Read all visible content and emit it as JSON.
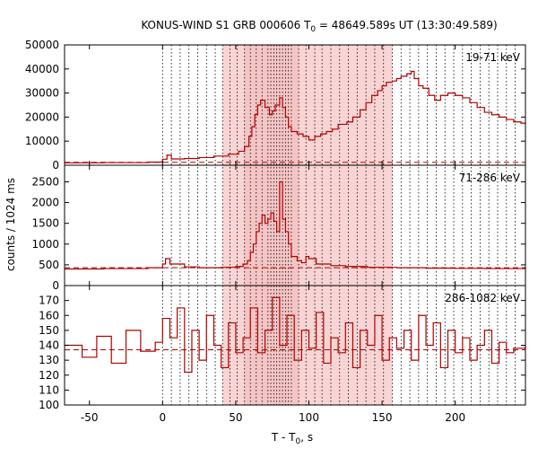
{
  "chart_data": {
    "type": "line",
    "title_text": "KONUS-WIND S1 GRB 000606 T",
    "title_sub": "0",
    "title_rest": " = 48649.589s UT (13:30:49.589)",
    "ylabel": "counts / 1024 ms",
    "xlabel_main": "T - T",
    "xlabel_sub": "0",
    "xlabel_tail": ", s",
    "xlim": [
      -67,
      248
    ],
    "x_ticks": [
      -50,
      0,
      50,
      100,
      150,
      200
    ],
    "colors": {
      "series": "#b00000",
      "shade": "#f9d4d4",
      "background_line": "#b00000"
    },
    "shaded_interval": [
      41,
      157
    ],
    "dark_shaded_interval": [
      56,
      93
    ],
    "interval_boundaries": [
      0,
      6,
      12,
      18,
      24,
      30,
      36,
      41,
      46,
      51,
      56,
      60,
      64,
      68,
      72,
      74,
      76,
      78,
      80,
      82,
      84,
      86,
      88,
      93,
      98,
      104,
      109,
      115,
      121,
      127,
      133,
      139,
      145,
      151,
      157,
      163,
      169,
      175,
      181,
      187,
      193,
      199,
      205,
      211,
      217,
      223,
      229,
      235,
      241
    ],
    "panels": [
      {
        "label": "19-71 keV",
        "ylim": [
          0,
          50000
        ],
        "y_ticks": [
          0,
          10000,
          20000,
          30000,
          40000,
          50000
        ],
        "background": 1200,
        "points": [
          [
            -67,
            1000
          ],
          [
            -40,
            1100
          ],
          [
            -10,
            1300
          ],
          [
            0,
            2500
          ],
          [
            3,
            4200
          ],
          [
            6,
            2600
          ],
          [
            15,
            2800
          ],
          [
            25,
            3200
          ],
          [
            35,
            3800
          ],
          [
            45,
            4600
          ],
          [
            52,
            5800
          ],
          [
            56,
            7800
          ],
          [
            59,
            12000
          ],
          [
            61,
            16000
          ],
          [
            63,
            21000
          ],
          [
            65,
            25000
          ],
          [
            67,
            27000
          ],
          [
            70,
            24000
          ],
          [
            73,
            21000
          ],
          [
            75,
            22500
          ],
          [
            77,
            25000
          ],
          [
            80,
            28000
          ],
          [
            82,
            24000
          ],
          [
            84,
            20000
          ],
          [
            86,
            16000
          ],
          [
            88,
            14000
          ],
          [
            92,
            13000
          ],
          [
            96,
            12000
          ],
          [
            100,
            10500
          ],
          [
            104,
            12000
          ],
          [
            108,
            13000
          ],
          [
            112,
            14000
          ],
          [
            116,
            15000
          ],
          [
            120,
            17000
          ],
          [
            126,
            18000
          ],
          [
            130,
            20000
          ],
          [
            135,
            23000
          ],
          [
            139,
            26000
          ],
          [
            143,
            29000
          ],
          [
            147,
            31000
          ],
          [
            150,
            33000
          ],
          [
            153,
            34500
          ],
          [
            157,
            35000
          ],
          [
            160,
            36000
          ],
          [
            163,
            37000
          ],
          [
            167,
            38000
          ],
          [
            170,
            39000
          ],
          [
            172,
            36000
          ],
          [
            175,
            33000
          ],
          [
            178,
            32000
          ],
          [
            182,
            29000
          ],
          [
            186,
            27000
          ],
          [
            190,
            29000
          ],
          [
            195,
            30000
          ],
          [
            200,
            29000
          ],
          [
            205,
            28000
          ],
          [
            210,
            26000
          ],
          [
            215,
            24000
          ],
          [
            220,
            22000
          ],
          [
            225,
            21000
          ],
          [
            230,
            20000
          ],
          [
            235,
            19000
          ],
          [
            240,
            18000
          ],
          [
            245,
            17500
          ],
          [
            248,
            17000
          ]
        ]
      },
      {
        "label": "71-286 keV",
        "ylim": [
          0,
          2900
        ],
        "y_ticks": [
          0,
          500,
          1000,
          1500,
          2000,
          2500
        ],
        "background": 430,
        "points": [
          [
            -67,
            400
          ],
          [
            -40,
            410
          ],
          [
            -10,
            430
          ],
          [
            0,
            520
          ],
          [
            2,
            650
          ],
          [
            5,
            520
          ],
          [
            15,
            450
          ],
          [
            25,
            430
          ],
          [
            40,
            440
          ],
          [
            50,
            460
          ],
          [
            55,
            520
          ],
          [
            58,
            600
          ],
          [
            60,
            800
          ],
          [
            62,
            1000
          ],
          [
            64,
            1300
          ],
          [
            66,
            1500
          ],
          [
            68,
            1700
          ],
          [
            70,
            1500
          ],
          [
            72,
            1600
          ],
          [
            74,
            1750
          ],
          [
            76,
            1550
          ],
          [
            78,
            1300
          ],
          [
            80,
            2500
          ],
          [
            82,
            1600
          ],
          [
            84,
            1300
          ],
          [
            86,
            1000
          ],
          [
            88,
            700
          ],
          [
            92,
            600
          ],
          [
            95,
            550
          ],
          [
            98,
            700
          ],
          [
            100,
            650
          ],
          [
            105,
            520
          ],
          [
            115,
            480
          ],
          [
            125,
            460
          ],
          [
            140,
            440
          ],
          [
            160,
            430
          ],
          [
            180,
            420
          ],
          [
            200,
            415
          ],
          [
            220,
            410
          ],
          [
            248,
            400
          ]
        ]
      },
      {
        "label": "286-1082 keV",
        "ylim": [
          100,
          180
        ],
        "y_ticks": [
          100,
          110,
          120,
          130,
          140,
          150,
          160,
          170
        ],
        "background": 137,
        "points": [
          [
            -67,
            140
          ],
          [
            -55,
            132
          ],
          [
            -45,
            146
          ],
          [
            -35,
            128
          ],
          [
            -25,
            150
          ],
          [
            -15,
            136
          ],
          [
            -5,
            142
          ],
          [
            0,
            158
          ],
          [
            5,
            145
          ],
          [
            10,
            165
          ],
          [
            15,
            122
          ],
          [
            20,
            150
          ],
          [
            25,
            130
          ],
          [
            30,
            160
          ],
          [
            35,
            140
          ],
          [
            40,
            125
          ],
          [
            45,
            155
          ],
          [
            50,
            135
          ],
          [
            55,
            145
          ],
          [
            60,
            165
          ],
          [
            65,
            135
          ],
          [
            70,
            150
          ],
          [
            75,
            172
          ],
          [
            80,
            140
          ],
          [
            85,
            160
          ],
          [
            90,
            130
          ],
          [
            95,
            150
          ],
          [
            100,
            138
          ],
          [
            105,
            162
          ],
          [
            110,
            128
          ],
          [
            115,
            145
          ],
          [
            120,
            135
          ],
          [
            125,
            155
          ],
          [
            130,
            125
          ],
          [
            135,
            150
          ],
          [
            140,
            140
          ],
          [
            145,
            160
          ],
          [
            150,
            130
          ],
          [
            155,
            145
          ],
          [
            160,
            138
          ],
          [
            165,
            150
          ],
          [
            170,
            130
          ],
          [
            175,
            160
          ],
          [
            180,
            140
          ],
          [
            185,
            155
          ],
          [
            190,
            125
          ],
          [
            195,
            150
          ],
          [
            200,
            135
          ],
          [
            205,
            145
          ],
          [
            210,
            130
          ],
          [
            215,
            140
          ],
          [
            220,
            150
          ],
          [
            225,
            128
          ],
          [
            230,
            142
          ],
          [
            235,
            135
          ],
          [
            240,
            138
          ],
          [
            248,
            140
          ]
        ]
      }
    ]
  }
}
